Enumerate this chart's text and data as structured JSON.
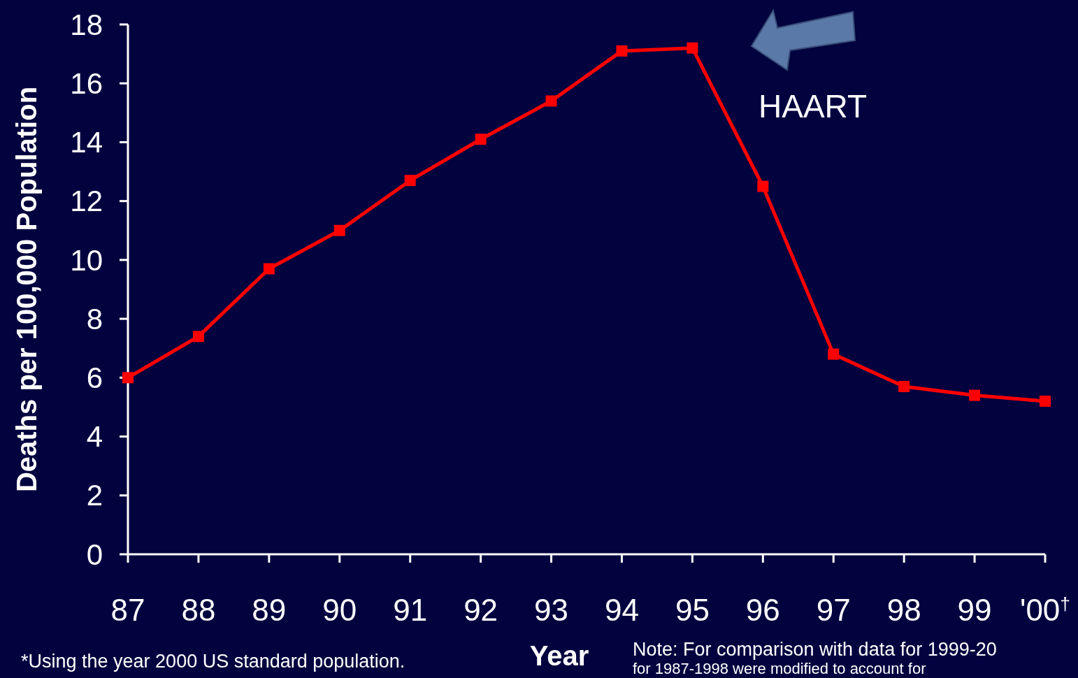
{
  "chart_data": {
    "type": "line",
    "xlabel": "Year",
    "ylabel": "Deaths per 100,000 Population",
    "categories": [
      "87",
      "88",
      "89",
      "90",
      "91",
      "92",
      "93",
      "94",
      "95",
      "96",
      "97",
      "98",
      "99",
      "'00$^{†}$"
    ],
    "series": [
      {
        "color": "#ff0000",
        "values": [
          6.0,
          7.4,
          9.7,
          11.0,
          12.7,
          14.1,
          15.4,
          17.1,
          17.2,
          12.5,
          6.8,
          5.7,
          5.4,
          5.2
        ]
      }
    ],
    "ylim": [
      0,
      18
    ],
    "yticks": [
      0,
      2,
      4,
      6,
      8,
      10,
      12,
      14,
      16,
      18
    ],
    "grid": false,
    "marker": "square",
    "line_style": "solid",
    "annotations": [
      "HAART",
      "*Using the year 2000 US standard population.",
      "Note:  For comparison with data for 1999-20",
      "for 1987-1998 were modified to account for"
    ]
  }
}
